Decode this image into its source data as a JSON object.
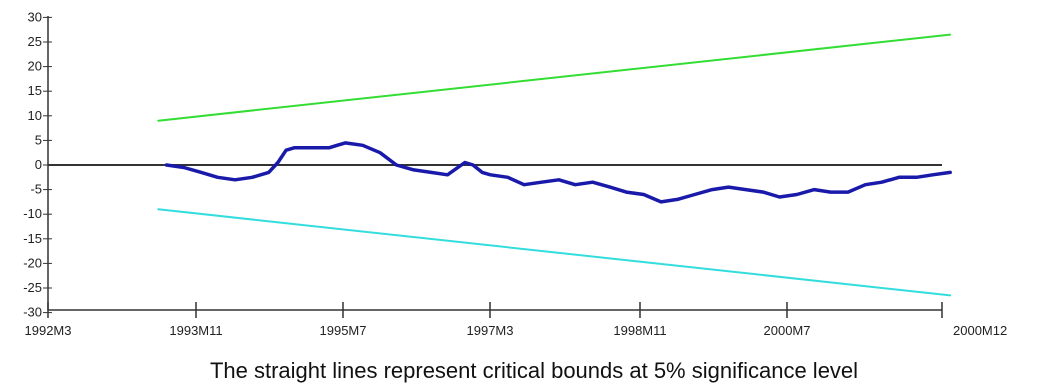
{
  "chart_data": {
    "type": "line",
    "caption": "The straight lines represent critical bounds at 5% significance level",
    "x_ticks": [
      "1992M3",
      "1993M11",
      "1995M7",
      "1997M3",
      "1998M11",
      "2000M7",
      "2000M12"
    ],
    "y_ticks": [
      "30",
      "25",
      "20",
      "15",
      "10",
      "5",
      "0",
      "-5",
      "-10",
      "-15",
      "-20",
      "-25",
      "-30"
    ],
    "ylim": [
      -30,
      30
    ],
    "grid": false,
    "series": [
      {
        "color": "#33dd33",
        "x": [
          1993.25,
          2001.0
        ],
        "y": [
          9,
          26.5
        ]
      },
      {
        "color": "#33dddd",
        "x": [
          1993.25,
          2001.0
        ],
        "y": [
          -9,
          -26.5
        ]
      },
      {
        "color": "#1a1aaa",
        "x": [
          1993.33,
          1993.5,
          1993.67,
          1993.83,
          1994.0,
          1994.17,
          1994.33,
          1994.42,
          1994.5,
          1994.58,
          1994.75,
          1994.92,
          1995.0,
          1995.08,
          1995.25,
          1995.42,
          1995.58,
          1995.75,
          1995.92,
          1996.08,
          1996.25,
          1996.33,
          1996.42,
          1996.5,
          1996.67,
          1996.83,
          1997.0,
          1997.17,
          1997.33,
          1997.5,
          1997.67,
          1997.83,
          1998.0,
          1998.17,
          1998.33,
          1998.5,
          1998.67,
          1998.83,
          1999.0,
          1999.17,
          1999.33,
          1999.5,
          1999.67,
          1999.83,
          2000.0,
          2000.17,
          2000.33,
          2000.5,
          2000.67,
          2000.83,
          2001.0
        ],
        "y": [
          0,
          -0.5,
          -1.5,
          -2.5,
          -3,
          -2.5,
          -1.5,
          0.5,
          3,
          3.5,
          3.5,
          3.5,
          4,
          4.5,
          4,
          2.5,
          0,
          -1,
          -1.5,
          -2,
          0.5,
          0,
          -1.5,
          -2,
          -2.5,
          -4,
          -3.5,
          -3,
          -4,
          -3.5,
          -4.5,
          -5.5,
          -6,
          -7.5,
          -7,
          -6,
          -5,
          -4.5,
          -5,
          -5.5,
          -6.5,
          -6,
          -5,
          -5.5,
          -5.5,
          -4,
          -3.5,
          -2.5,
          -2.5,
          -2,
          -1.5
        ]
      }
    ]
  }
}
